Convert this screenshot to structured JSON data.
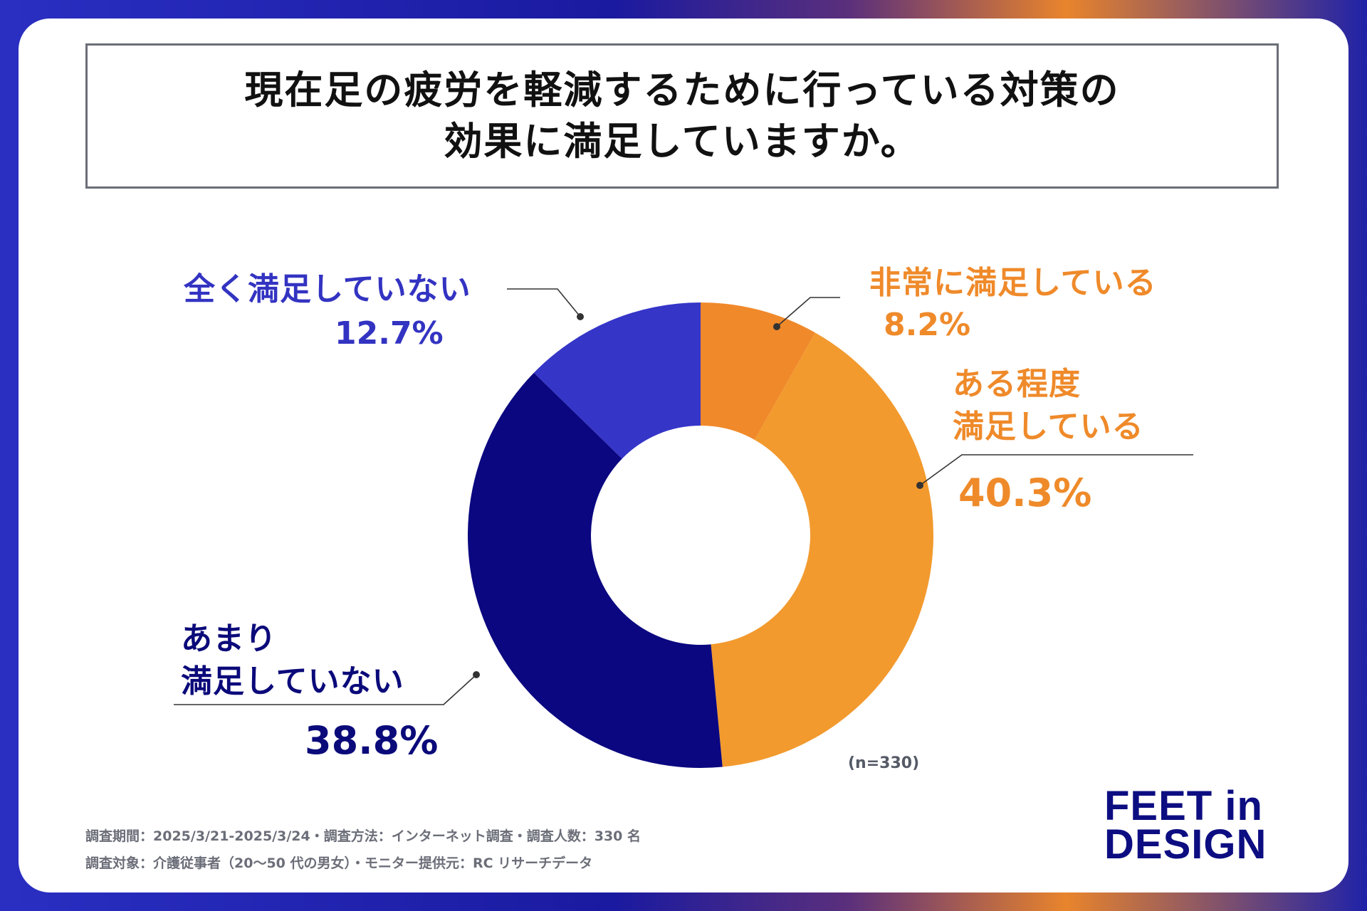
{
  "title": {
    "line1": "現在足の疲労を軽減するために行っている対策の",
    "line2": "効果に満足していますか。"
  },
  "chart_data": {
    "type": "donut",
    "title": "現在足の疲労を軽減するために行っている対策の効果に満足していますか。",
    "n_label": "(n=330)",
    "slices": [
      {
        "label": "非常に満足している",
        "label_lines": [
          "非常に満足している"
        ],
        "value": 8.2,
        "display": "8.2%",
        "color": "#f0892a",
        "text_color": "#ef8a2a"
      },
      {
        "label": "ある程度満足している",
        "label_lines": [
          "ある程度",
          "満足している"
        ],
        "value": 40.3,
        "display": "40.3%",
        "color": "#f29a2e",
        "text_color": "#ef8a2a"
      },
      {
        "label": "あまり満足していない",
        "label_lines": [
          "あまり",
          "満足していない"
        ],
        "value": 38.8,
        "display": "38.8%",
        "color": "#0b0780",
        "text_color": "#0b0a7a"
      },
      {
        "label": "全く満足していない",
        "label_lines": [
          "全く満足していない"
        ],
        "value": 12.7,
        "display": "12.7%",
        "color": "#3535c8",
        "text_color": "#3333c2"
      }
    ]
  },
  "footnotes": {
    "line1": "調査期間：2025/3/21-2025/3/24・調査方法：インターネット調査・調査人数：330 名",
    "line2": "調査対象：介護従事者（20〜50 代の男女）・モニター提供元：RC リサーチデータ"
  },
  "logo": {
    "line1": "FEET in",
    "line2": "DESIGN"
  },
  "colors": {
    "title_text": "#111111",
    "logo": "#0d0d82",
    "footnote": "#6b6e78"
  }
}
